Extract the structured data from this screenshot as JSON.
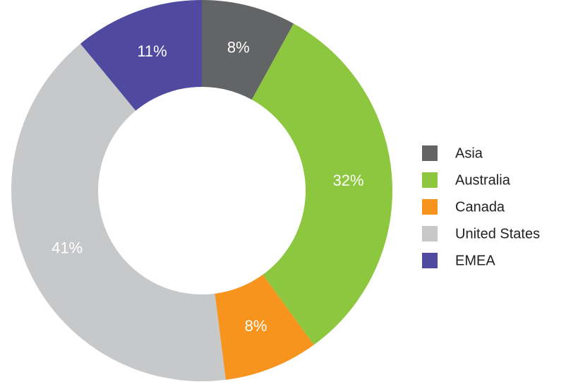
{
  "chart_data": {
    "type": "pie",
    "categories": [
      "Asia",
      "Australia",
      "Canada",
      "United States",
      "EMEA"
    ],
    "values": [
      8,
      32,
      8,
      41,
      11
    ],
    "value_labels": [
      "8%",
      "32%",
      "8%",
      "41%",
      "11%"
    ],
    "colors": [
      "#636466",
      "#8dc63f",
      "#f7941d",
      "#c7c8ca",
      "#4f4aa0"
    ],
    "legend": "right"
  }
}
